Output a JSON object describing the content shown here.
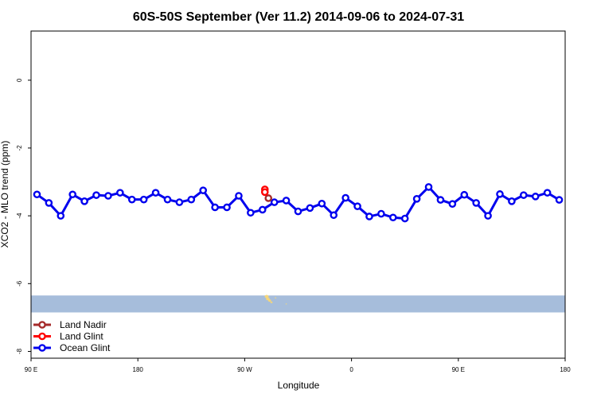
{
  "chart_data": {
    "type": "line",
    "title": "60S-50S September (Ver 11.2)   2014-09-06 to 2024-07-31",
    "xlabel": "Longitude",
    "ylabel": "XCO2 - MLO trend (ppm)",
    "xlim": [
      90,
      540
    ],
    "ylim": [
      -8.2,
      1.45
    ],
    "x_ticks": [
      {
        "value": 90,
        "label": "90 E"
      },
      {
        "value": 180,
        "label": "180"
      },
      {
        "value": 270,
        "label": "90 W"
      },
      {
        "value": 360,
        "label": "0"
      },
      {
        "value": 450,
        "label": "90 E"
      },
      {
        "value": 540,
        "label": "180"
      }
    ],
    "y_ticks": [
      {
        "value": 0,
        "label": "0"
      },
      {
        "value": -2,
        "label": "-2"
      },
      {
        "value": -4,
        "label": "-4"
      },
      {
        "value": -6,
        "label": "-6"
      },
      {
        "value": -8,
        "label": "-8"
      }
    ],
    "grid": false,
    "legend_position": "bottom-left",
    "map_band": {
      "y_top": -6.35,
      "y_bottom": -6.85,
      "ocean_color": "#a6bddb",
      "land_color": "#f5d67a"
    },
    "series": [
      {
        "name": "Land Nadir",
        "color": "#a52a2a",
        "x": [
          290
        ],
        "y": [
          -3.48
        ]
      },
      {
        "name": "Land Glint",
        "color": "#ff0000",
        "x": [
          287,
          287
        ],
        "y": [
          -3.22,
          -3.3
        ]
      },
      {
        "name": "Ocean Glint",
        "color": "#0000ee",
        "x": [
          95,
          105,
          115,
          125,
          135,
          145,
          155,
          165,
          175,
          185,
          195,
          205,
          215,
          225,
          235,
          245,
          255,
          265,
          275,
          285,
          295,
          305,
          315,
          325,
          335,
          345,
          355,
          365,
          375,
          385,
          395,
          405,
          415,
          425,
          435,
          445,
          455,
          465,
          475,
          485,
          495,
          505,
          515,
          525,
          535
        ],
        "y": [
          -3.37,
          -3.62,
          -4.0,
          -3.37,
          -3.57,
          -3.39,
          -3.41,
          -3.32,
          -3.52,
          -3.52,
          -3.32,
          -3.52,
          -3.6,
          -3.52,
          -3.25,
          -3.75,
          -3.75,
          -3.41,
          -3.91,
          -3.82,
          -3.6,
          -3.55,
          -3.87,
          -3.77,
          -3.64,
          -3.98,
          -3.47,
          -3.72,
          -4.02,
          -3.94,
          -4.05,
          -4.08,
          -3.5,
          -3.15,
          -3.53,
          -3.65,
          -3.38,
          -3.62,
          -4.0,
          -3.36,
          -3.57,
          -3.39,
          -3.43,
          -3.32,
          -3.53
        ]
      }
    ]
  }
}
